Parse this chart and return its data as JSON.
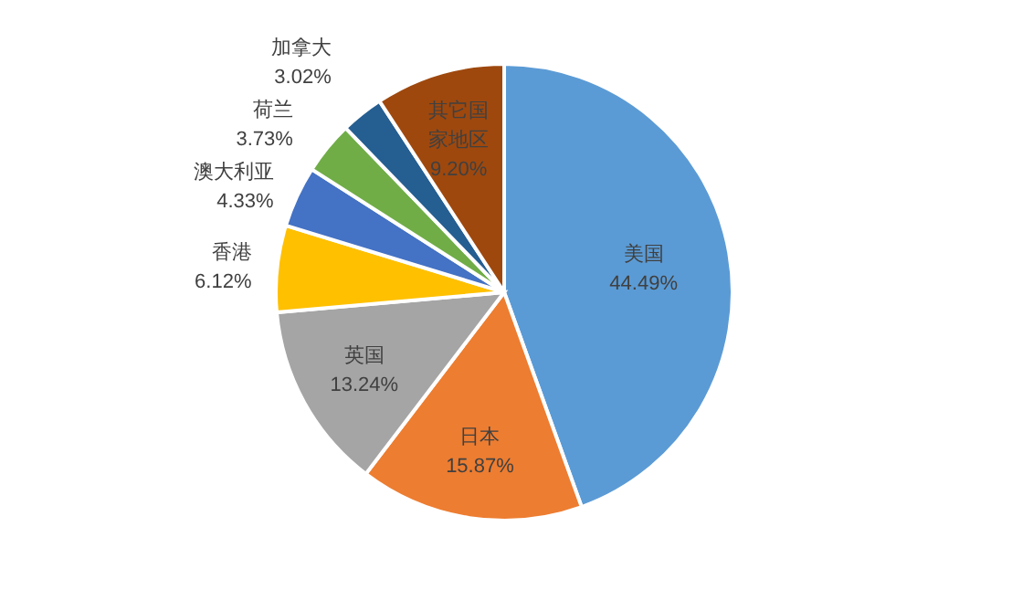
{
  "chart_data": {
    "type": "pie",
    "categories": [
      "美国",
      "日本",
      "英国",
      "香港",
      "澳大利亚",
      "荷兰",
      "加拿大",
      "其它国家地区"
    ],
    "values": [
      44.49,
      15.87,
      13.24,
      6.12,
      4.33,
      3.73,
      3.02,
      9.2
    ],
    "value_labels": [
      "44.49%",
      "15.87%",
      "13.24%",
      "6.12%",
      "4.33%",
      "3.73%",
      "3.02%",
      "9.20%"
    ],
    "colors": [
      "#5b9bd5",
      "#ed7d31",
      "#a5a5a5",
      "#ffc000",
      "#4472c4",
      "#70ad47",
      "#255e91",
      "#9e480e"
    ],
    "legend": false
  }
}
